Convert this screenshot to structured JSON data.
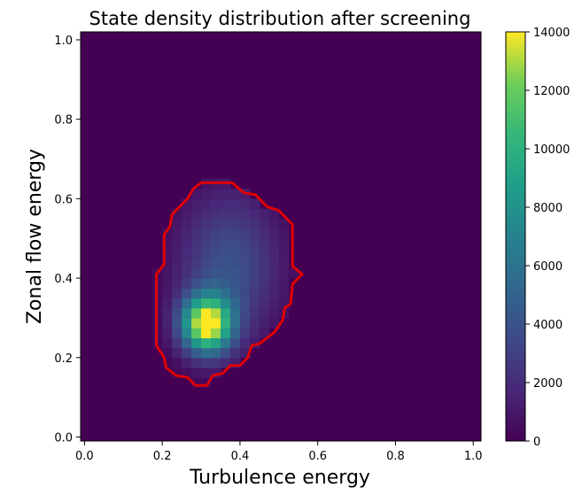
{
  "chart_data": {
    "type": "heatmap",
    "title": "State density distribution after screening",
    "xlabel": "Turbulence energy",
    "ylabel": "Zonal flow energy",
    "xlim": [
      -0.01,
      1.02
    ],
    "ylim": [
      -0.01,
      1.02
    ],
    "xticks": [
      0.0,
      0.2,
      0.4,
      0.6,
      0.8,
      1.0
    ],
    "xtick_labels": [
      "0.0",
      "0.2",
      "0.4",
      "0.6",
      "0.8",
      "1.0"
    ],
    "yticks": [
      0.0,
      0.2,
      0.4,
      0.6,
      0.8,
      1.0
    ],
    "ytick_labels": [
      "0.0",
      "0.2",
      "0.4",
      "0.6",
      "0.8",
      "1.0"
    ],
    "colormap": "viridis",
    "colorbar": {
      "min": 0,
      "max": 14000,
      "ticks": [
        0,
        2000,
        4000,
        6000,
        8000,
        10000,
        12000,
        14000
      ],
      "tick_labels": [
        "0",
        "2000",
        "4000",
        "6000",
        "8000",
        "10000",
        "12000",
        "14000"
      ]
    },
    "density_model": {
      "cell_size": 0.025,
      "peak_value": 14000,
      "peak_x": 0.315,
      "peak_y": 0.285,
      "main_sigma_x": 0.045,
      "main_sigma_y": 0.05,
      "halo_weight": 0.28,
      "halo_x": 0.37,
      "halo_y": 0.43,
      "halo_sigma_x": 0.09,
      "halo_sigma_y": 0.13,
      "threshold": 120
    },
    "boundary_color": "#e00000",
    "boundary": [
      [
        0.3,
        0.64
      ],
      [
        0.38,
        0.64
      ],
      [
        0.41,
        0.615
      ],
      [
        0.44,
        0.61
      ],
      [
        0.47,
        0.58
      ],
      [
        0.5,
        0.57
      ],
      [
        0.535,
        0.535
      ],
      [
        0.535,
        0.43
      ],
      [
        0.56,
        0.41
      ],
      [
        0.535,
        0.385
      ],
      [
        0.53,
        0.335
      ],
      [
        0.515,
        0.325
      ],
      [
        0.51,
        0.295
      ],
      [
        0.49,
        0.265
      ],
      [
        0.47,
        0.25
      ],
      [
        0.45,
        0.235
      ],
      [
        0.43,
        0.23
      ],
      [
        0.42,
        0.2
      ],
      [
        0.4,
        0.18
      ],
      [
        0.375,
        0.18
      ],
      [
        0.355,
        0.16
      ],
      [
        0.33,
        0.155
      ],
      [
        0.315,
        0.13
      ],
      [
        0.285,
        0.13
      ],
      [
        0.265,
        0.15
      ],
      [
        0.235,
        0.155
      ],
      [
        0.21,
        0.175
      ],
      [
        0.205,
        0.2
      ],
      [
        0.195,
        0.215
      ],
      [
        0.185,
        0.23
      ],
      [
        0.185,
        0.41
      ],
      [
        0.205,
        0.435
      ],
      [
        0.205,
        0.51
      ],
      [
        0.22,
        0.53
      ],
      [
        0.225,
        0.56
      ],
      [
        0.245,
        0.58
      ],
      [
        0.265,
        0.6
      ],
      [
        0.28,
        0.625
      ]
    ]
  }
}
